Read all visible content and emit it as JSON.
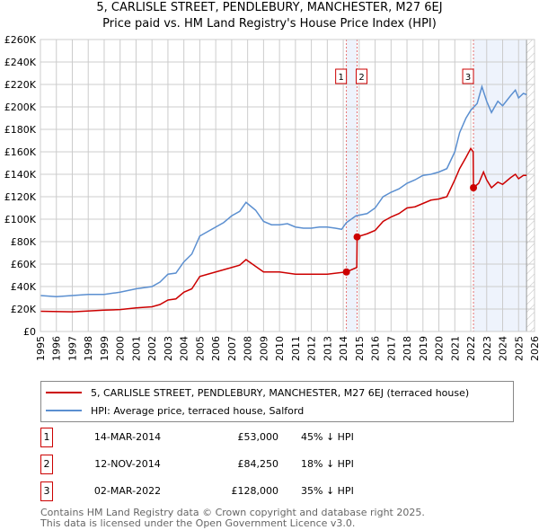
{
  "chart_data": {
    "type": "line",
    "title": "5, CARLISLE STREET, PENDLEBURY, MANCHESTER, M27 6EJ",
    "subtitle": "Price paid vs. HM Land Registry's House Price Index (HPI)",
    "xlim": [
      1995,
      2026
    ],
    "ylim": [
      0,
      260000
    ],
    "x_ticks": [
      "1995",
      "1996",
      "1997",
      "1998",
      "1999",
      "2000",
      "2001",
      "2002",
      "2003",
      "2004",
      "2005",
      "2006",
      "2007",
      "2008",
      "2009",
      "2010",
      "2011",
      "2012",
      "2013",
      "2014",
      "2015",
      "2016",
      "2017",
      "2018",
      "2019",
      "2020",
      "2021",
      "2022",
      "2023",
      "2024",
      "2025",
      "2026"
    ],
    "y_ticks": [
      "£0",
      "£20K",
      "£40K",
      "£60K",
      "£80K",
      "£100K",
      "£120K",
      "£140K",
      "£160K",
      "£180K",
      "£200K",
      "£220K",
      "£240K",
      "£260K"
    ],
    "grid": true,
    "shaded_ranges": [
      [
        2014.2,
        2014.87
      ],
      [
        2022.17,
        2025.5
      ]
    ],
    "series": [
      {
        "name": "5, CARLISLE STREET, PENDLEBURY, MANCHESTER, M27 6EJ (terraced house)",
        "color": "#cc0000",
        "points": [
          [
            1995,
            18
          ],
          [
            1997,
            17.5
          ],
          [
            1999,
            19
          ],
          [
            2000,
            19.5
          ],
          [
            2001,
            21
          ],
          [
            2002,
            22
          ],
          [
            2002.5,
            24
          ],
          [
            2003,
            28
          ],
          [
            2003.5,
            29
          ],
          [
            2004,
            35
          ],
          [
            2004.5,
            38
          ],
          [
            2005,
            49
          ],
          [
            2005.5,
            51
          ],
          [
            2006,
            53
          ],
          [
            2007,
            57
          ],
          [
            2007.5,
            59
          ],
          [
            2007.9,
            64
          ],
          [
            2008.5,
            58
          ],
          [
            2009,
            53
          ],
          [
            2010,
            53
          ],
          [
            2011,
            51
          ],
          [
            2012,
            51
          ],
          [
            2013,
            51
          ],
          [
            2014.2,
            53
          ],
          [
            2014.85,
            57
          ],
          [
            2014.87,
            84.25
          ],
          [
            2015.5,
            87
          ],
          [
            2016,
            90
          ],
          [
            2016.5,
            98
          ],
          [
            2017,
            102
          ],
          [
            2017.5,
            105
          ],
          [
            2018,
            110
          ],
          [
            2018.5,
            111
          ],
          [
            2019,
            114
          ],
          [
            2019.5,
            117
          ],
          [
            2020,
            118
          ],
          [
            2020.5,
            120
          ],
          [
            2021,
            135
          ],
          [
            2021.3,
            145
          ],
          [
            2021.7,
            155
          ],
          [
            2022,
            163
          ],
          [
            2022.15,
            160
          ],
          [
            2022.17,
            128
          ],
          [
            2022.5,
            132
          ],
          [
            2022.8,
            142
          ],
          [
            2023,
            135
          ],
          [
            2023.3,
            128
          ],
          [
            2023.7,
            133
          ],
          [
            2024,
            131
          ],
          [
            2024.5,
            137
          ],
          [
            2024.8,
            140
          ],
          [
            2025,
            136
          ],
          [
            2025.3,
            139
          ],
          [
            2025.5,
            139
          ]
        ]
      },
      {
        "name": "HPI: Average price, terraced house, Salford",
        "color": "#5b8fd0",
        "points": [
          [
            1995,
            32
          ],
          [
            1996,
            31
          ],
          [
            1997,
            32
          ],
          [
            1998,
            33
          ],
          [
            1999,
            33
          ],
          [
            2000,
            35
          ],
          [
            2001,
            38
          ],
          [
            2002,
            40
          ],
          [
            2002.5,
            44
          ],
          [
            2003,
            51
          ],
          [
            2003.5,
            52
          ],
          [
            2004,
            62
          ],
          [
            2004.5,
            69
          ],
          [
            2005,
            85
          ],
          [
            2005.5,
            89
          ],
          [
            2006,
            93
          ],
          [
            2006.5,
            97
          ],
          [
            2007,
            103
          ],
          [
            2007.5,
            107
          ],
          [
            2007.9,
            115
          ],
          [
            2008.5,
            108
          ],
          [
            2009,
            98
          ],
          [
            2009.5,
            95
          ],
          [
            2010,
            95
          ],
          [
            2010.5,
            96
          ],
          [
            2011,
            93
          ],
          [
            2011.5,
            92
          ],
          [
            2012,
            92
          ],
          [
            2012.5,
            93
          ],
          [
            2013,
            93
          ],
          [
            2013.5,
            92
          ],
          [
            2013.9,
            91
          ],
          [
            2014.2,
            97
          ],
          [
            2014.8,
            103
          ],
          [
            2015.5,
            105
          ],
          [
            2016,
            110
          ],
          [
            2016.5,
            120
          ],
          [
            2017,
            124
          ],
          [
            2017.5,
            127
          ],
          [
            2018,
            132
          ],
          [
            2018.5,
            135
          ],
          [
            2019,
            139
          ],
          [
            2019.5,
            140
          ],
          [
            2020,
            142
          ],
          [
            2020.5,
            145
          ],
          [
            2021,
            160
          ],
          [
            2021.3,
            177
          ],
          [
            2021.7,
            190
          ],
          [
            2022,
            197
          ],
          [
            2022.4,
            203
          ],
          [
            2022.7,
            218
          ],
          [
            2023,
            205
          ],
          [
            2023.3,
            195
          ],
          [
            2023.7,
            205
          ],
          [
            2024,
            201
          ],
          [
            2024.5,
            210
          ],
          [
            2024.8,
            215
          ],
          [
            2025,
            208
          ],
          [
            2025.3,
            212
          ],
          [
            2025.5,
            211
          ]
        ]
      }
    ],
    "sales": [
      {
        "label": "1",
        "x": 2014.2,
        "value": 53000,
        "date": "14-MAR-2014",
        "price": "£53,000",
        "hpi": "45% ↓ HPI"
      },
      {
        "label": "2",
        "x": 2014.87,
        "value": 84250,
        "date": "12-NOV-2014",
        "price": "£84,250",
        "hpi": "18% ↓ HPI"
      },
      {
        "label": "3",
        "x": 2022.17,
        "value": 128000,
        "date": "02-MAR-2022",
        "price": "£128,000",
        "hpi": "35% ↓ HPI"
      }
    ],
    "legend_position": "bottom"
  },
  "footer": [
    "Contains HM Land Registry data © Crown copyright and database right 2025.",
    "This data is licensed under the Open Government Licence v3.0."
  ]
}
